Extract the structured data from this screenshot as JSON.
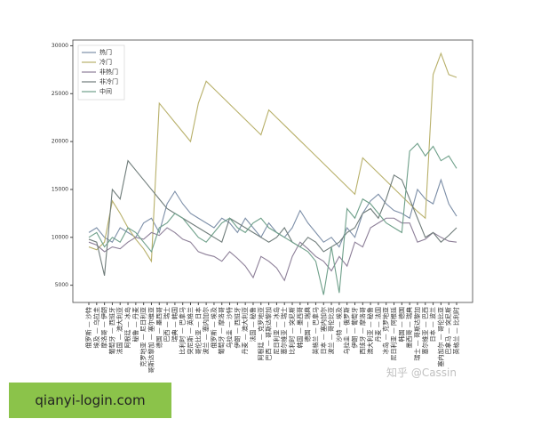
{
  "chart_data": {
    "type": "line",
    "categories": [
      "俄罗斯 — 沙特",
      "埃及 — 乌拉圭",
      "摩洛哥 — 伊朗",
      "葡萄牙 — 西班牙",
      "法国 — 澳大利亚",
      "阿根廷 — 冰岛",
      "秘鲁 — 丹麦",
      "克罗地亚 — 尼日利亚",
      "哥斯达黎加 — 塞尔维亚",
      "德国 — 墨西哥",
      "巴西 — 瑞士",
      "瑞典 — 韩国",
      "比利时 — 巴拿马",
      "突尼斯 — 英格兰",
      "哥伦比亚 — 日本",
      "波兰 — 塞内加尔",
      "俄罗斯 — 埃及",
      "葡萄牙 — 摩洛哥",
      "乌拉圭 — 沙特",
      "伊朗 — 西班牙",
      "丹麦 — 澳大利亚",
      "法国 — 秘鲁",
      "阿根廷 — 克罗地亚",
      "巴西 — 哥斯达黎加",
      "尼日利亚 — 冰岛",
      "塞尔维亚 — 瑞士",
      "比利时 — 突尼斯",
      "韩国 — 墨西哥",
      "德国 — 瑞典",
      "英格兰 — 巴拿马",
      "日本 — 塞内加尔",
      "波兰 — 哥伦比亚",
      "沙特 — 埃及",
      "乌拉圭 — 俄罗斯",
      "伊朗 — 葡萄牙",
      "西班牙 — 摩洛哥",
      "澳大利亚 — 秘鲁",
      "丹麦 — 法国",
      "冰岛 — 克罗地亚",
      "尼日利亚 — 阿根廷",
      "韩国 — 德国",
      "墨西哥 — 瑞典",
      "瑞士 — 哥斯达黎加",
      "塞尔维亚 — 巴西",
      "日本 — 波兰",
      "塞内加尔 — 哥伦比亚",
      "巴拿马 — 突尼斯",
      "英格兰 — 比利时"
    ],
    "series": [
      {
        "name": "热门",
        "color": "#7d8fa8",
        "values": [
          10500,
          11000,
          10000,
          9500,
          11000,
          10500,
          10000,
          11500,
          12000,
          10500,
          13500,
          14800,
          13500,
          12500,
          12000,
          11500,
          11000,
          12000,
          11500,
          10500,
          12000,
          11000,
          10000,
          11500,
          10500,
          10000,
          11000,
          12800,
          11500,
          10500,
          9500,
          10000,
          9000,
          11000,
          10000,
          12500,
          13800,
          14500,
          13500,
          12800,
          12500,
          12000,
          15000,
          14000,
          13500,
          16000,
          13500,
          12200
        ]
      },
      {
        "name": "冷门",
        "color": "#b8b06a",
        "values": [
          9000,
          8700,
          9500,
          13800,
          12500,
          11000,
          9800,
          8800,
          7500,
          24000,
          23000,
          22000,
          21000,
          20000,
          24000,
          26300,
          25500,
          24700,
          23900,
          23100,
          22300,
          21500,
          20700,
          23300,
          22500,
          21700,
          20900,
          20100,
          19300,
          18500,
          17700,
          16900,
          16100,
          15300,
          14500,
          18300,
          17500,
          16700,
          15900,
          15100,
          14300,
          13500,
          12700,
          12000,
          27000,
          29200,
          27000,
          26700
        ]
      },
      {
        "name": "非热门",
        "color": "#8d7f98",
        "values": [
          9500,
          9200,
          8500,
          9000,
          8800,
          9500,
          10000,
          9800,
          10500,
          10200,
          11000,
          10500,
          9800,
          9500,
          8500,
          8200,
          8000,
          7500,
          8500,
          7800,
          7000,
          5800,
          8000,
          7500,
          6800,
          5500,
          8000,
          9500,
          8800,
          8000,
          7500,
          6500,
          8000,
          7000,
          9500,
          9000,
          11000,
          11500,
          12000,
          12000,
          11500,
          11500,
          9500,
          9800,
          10500,
          10000,
          9600,
          9500
        ]
      },
      {
        "name": "非冷门",
        "color": "#6f7c7a",
        "values": [
          9800,
          9500,
          6000,
          15000,
          14000,
          18000,
          17000,
          16000,
          15000,
          14000,
          13000,
          12500,
          12000,
          11500,
          11000,
          10500,
          10000,
          9500,
          12000,
          11500,
          11000,
          10500,
          10000,
          9500,
          10000,
          11000,
          9500,
          9000,
          10000,
          9500,
          8500,
          9000,
          9500,
          10500,
          11000,
          12500,
          13000,
          12000,
          14000,
          16500,
          16000,
          14000,
          12000,
          10000,
          10500,
          9500,
          10200,
          11000
        ]
      },
      {
        "name": "中间",
        "color": "#6fa08a",
        "values": [
          10000,
          10500,
          9000,
          10000,
          9500,
          11000,
          10500,
          9500,
          8500,
          11000,
          11500,
          12500,
          12000,
          11000,
          10000,
          9500,
          10500,
          11500,
          12000,
          11000,
          10500,
          11500,
          12000,
          11000,
          10500,
          10000,
          9500,
          9000,
          8500,
          7500,
          4000,
          9000,
          4200,
          13000,
          12000,
          14000,
          13500,
          12500,
          11500,
          11000,
          10500,
          19000,
          19800,
          18500,
          19500,
          18000,
          18500,
          17200
        ]
      }
    ],
    "ylim": [
      3200,
      30600
    ],
    "yticks": [
      5000,
      10000,
      15000,
      20000,
      25000,
      30000
    ],
    "legend": "upper left"
  },
  "overlay": {
    "watermark": "知乎 @Cassin",
    "banner": "qianyi-login.com"
  }
}
